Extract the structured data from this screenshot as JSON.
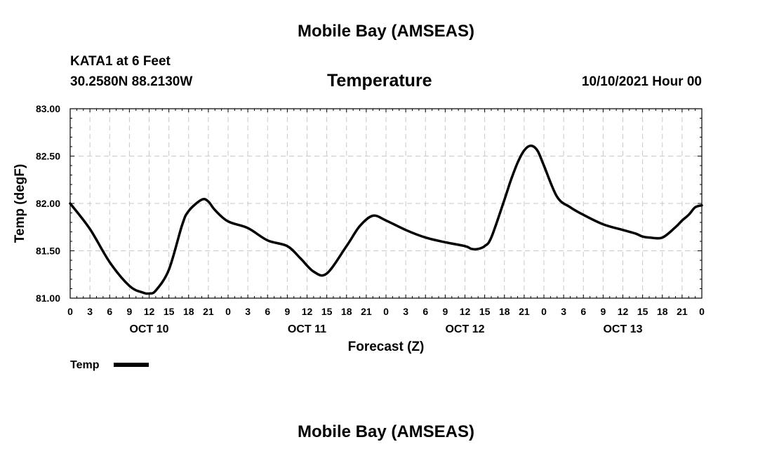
{
  "header": {
    "title": "Mobile Bay (AMSEAS)",
    "station": "KATA1 at 6 Feet",
    "coords": "30.2580N  88.2130W",
    "variable": "Temperature",
    "run": "10/10/2021 Hour 00"
  },
  "footer": {
    "title": "Mobile Bay (AMSEAS)"
  },
  "legend": {
    "label": "Temp"
  },
  "chart_data": {
    "type": "line",
    "title": "Temperature",
    "xlabel": "Forecast (Z)",
    "ylabel": "Temp (degF)",
    "ylim": [
      81.0,
      83.0
    ],
    "xlim": [
      0,
      96
    ],
    "y_ticks": [
      "81.00",
      "81.50",
      "82.00",
      "82.50",
      "83.00"
    ],
    "x_tick_labels": [
      "0",
      "3",
      "6",
      "9",
      "12",
      "15",
      "18",
      "21",
      "0",
      "3",
      "6",
      "9",
      "12",
      "15",
      "18",
      "21",
      "0",
      "3",
      "6",
      "9",
      "12",
      "15",
      "18",
      "21",
      "0",
      "3",
      "6",
      "9",
      "12",
      "15",
      "18",
      "21",
      "0"
    ],
    "day_labels": [
      {
        "label": "OCT 10",
        "hour": 12
      },
      {
        "label": "OCT 11",
        "hour": 36
      },
      {
        "label": "OCT 12",
        "hour": 60
      },
      {
        "label": "OCT 13",
        "hour": 84
      }
    ],
    "grid": true,
    "series": [
      {
        "name": "Temp",
        "x": [
          0,
          3,
          6,
          9,
          11,
          12,
          13,
          15,
          17,
          18,
          20,
          21,
          22,
          24,
          27,
          30,
          33,
          35,
          37,
          39,
          42,
          44,
          46,
          48,
          51,
          54,
          57,
          60,
          61,
          62,
          63,
          64,
          66,
          67,
          68,
          69,
          70,
          71,
          72,
          74,
          76,
          78,
          81,
          84,
          86,
          87,
          88,
          90,
          92,
          93,
          94,
          95,
          96
        ],
        "y": [
          82.0,
          81.73,
          81.38,
          81.13,
          81.06,
          81.05,
          81.08,
          81.3,
          81.77,
          81.92,
          82.04,
          82.02,
          81.93,
          81.81,
          81.74,
          81.61,
          81.55,
          81.42,
          81.28,
          81.26,
          81.55,
          81.76,
          81.87,
          81.82,
          81.72,
          81.64,
          81.59,
          81.55,
          81.52,
          81.52,
          81.55,
          81.64,
          82.04,
          82.25,
          82.43,
          82.56,
          82.61,
          82.56,
          82.4,
          82.07,
          81.96,
          81.88,
          81.78,
          81.72,
          81.68,
          81.65,
          81.64,
          81.64,
          81.75,
          81.82,
          81.88,
          81.96,
          81.98
        ]
      }
    ]
  }
}
